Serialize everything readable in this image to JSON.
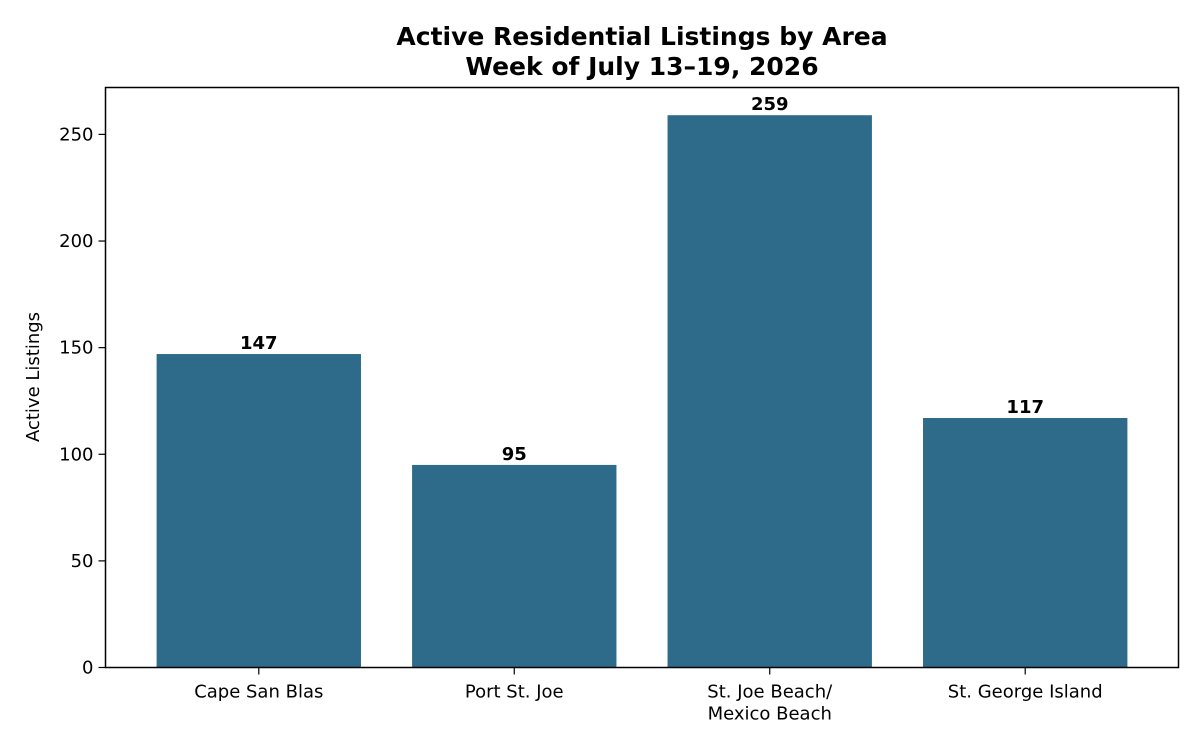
{
  "chart_data": {
    "type": "bar",
    "title": "Active Residential Listings by Area",
    "subtitle": "Week of July 13–19, 2026",
    "xlabel": "",
    "ylabel": "Active Listings",
    "categories": [
      [
        "Cape San Blas"
      ],
      [
        "Port St. Joe"
      ],
      [
        "St. Joe Beach/",
        "Mexico Beach"
      ],
      [
        "St. George Island"
      ]
    ],
    "values": [
      147,
      95,
      259,
      117
    ],
    "data_labels": [
      "147",
      "95",
      "259",
      "117"
    ],
    "ylim": [
      0,
      272
    ],
    "yticks": [
      0,
      50,
      100,
      150,
      200,
      250
    ],
    "ytick_labels": [
      "0",
      "50",
      "100",
      "150",
      "200",
      "250"
    ],
    "grid": false,
    "legend": "none",
    "bar_color": "#2e6a89"
  }
}
